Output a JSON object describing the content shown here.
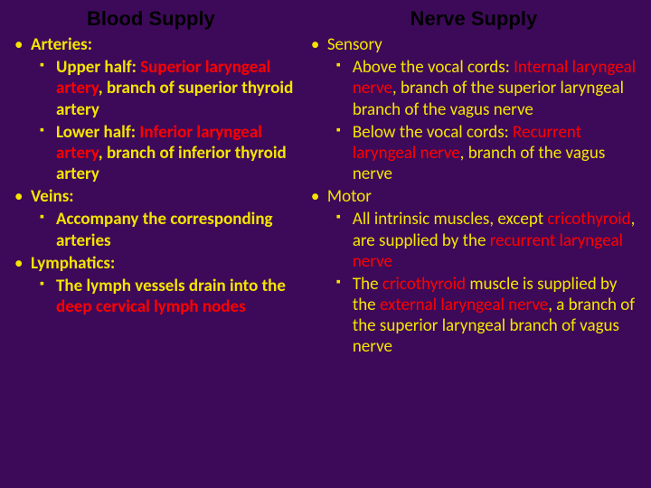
{
  "background_color": "#3d0a5a",
  "text_color": "#f5e400",
  "highlight_color": "#ff0000",
  "left": {
    "heading": "Blood Supply",
    "items": [
      {
        "label": "Arteries:",
        "bold": true,
        "sub": [
          {
            "spans": [
              {
                "t": "Upper half: ",
                "bold": true
              },
              {
                "t": "Superior laryngeal artery",
                "bold": true,
                "hl": true
              },
              {
                "t": ",",
                "bold": true
              },
              {
                "t": " branch of superior thyroid artery",
                "bold": true
              }
            ]
          },
          {
            "spans": [
              {
                "t": "Lower half: ",
                "bold": true
              },
              {
                "t": "Inferior laryngeal artery",
                "bold": true,
                "hl": true
              },
              {
                "t": ",",
                "bold": true
              },
              {
                "t": " branch of inferior thyroid artery",
                "bold": true
              }
            ]
          }
        ]
      },
      {
        "label": "Veins:",
        "bold": true,
        "sub": [
          {
            "spans": [
              {
                "t": "Accompany the corresponding arteries",
                "bold": true
              }
            ]
          }
        ]
      },
      {
        "label": "Lymphatics:",
        "bold": true,
        "sub": [
          {
            "spans": [
              {
                "t": "The lymph vessels drain into the ",
                "bold": true
              },
              {
                "t": "deep cervical lymph nodes",
                "bold": true,
                "hl": true
              }
            ]
          }
        ]
      }
    ]
  },
  "right": {
    "heading": "Nerve Supply",
    "items": [
      {
        "label": "Sensory",
        "bold": false,
        "sub": [
          {
            "spans": [
              {
                "t": "Above the vocal cords: "
              },
              {
                "t": "Internal laryngeal nerve",
                "hl": true
              },
              {
                "t": ", branch of the superior laryngeal branch of the vagus nerve"
              }
            ]
          },
          {
            "spans": [
              {
                "t": "Below the vocal cords: "
              },
              {
                "t": "Recurrent laryngeal nerve",
                "hl": true
              },
              {
                "t": ", branch of the vagus nerve"
              }
            ]
          }
        ]
      },
      {
        "label": "Motor",
        "bold": false,
        "sub": [
          {
            "spans": [
              {
                "t": "All intrinsic muscles, except "
              },
              {
                "t": "cricothyroid",
                "hl": true
              },
              {
                "t": ", are supplied by the "
              },
              {
                "t": "recurrent laryngeal nerve",
                "hl": true
              }
            ]
          },
          {
            "spans": [
              {
                "t": "The "
              },
              {
                "t": "cricothyroid",
                "hl": true
              },
              {
                "t": " muscle is supplied by the "
              },
              {
                "t": "external laryngeal nerve",
                "hl": true
              },
              {
                "t": ", a branch of the superior laryngeal branch of vagus nerve"
              }
            ]
          }
        ]
      }
    ]
  }
}
